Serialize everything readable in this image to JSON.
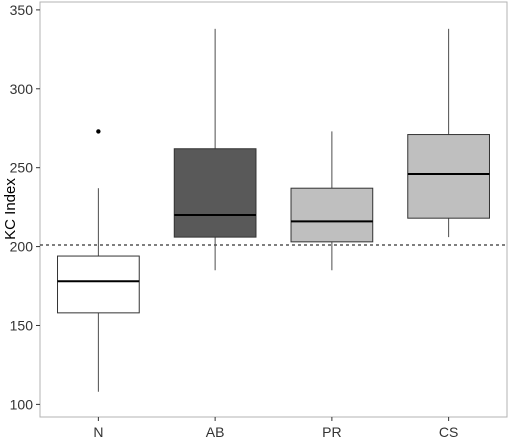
{
  "chart_data": {
    "type": "box",
    "title": "",
    "xlabel": "",
    "ylabel": "KC Index",
    "ylim": [
      92,
      355
    ],
    "yticks": [
      100,
      150,
      200,
      250,
      300,
      350
    ],
    "grid": false,
    "legend": "none",
    "reference_line": {
      "y": 201,
      "style": "dotted",
      "color": "#333333"
    },
    "categories": [
      "N",
      "AB",
      "PR",
      "CS"
    ],
    "boxes": [
      {
        "category": "N",
        "whisker_low": 108,
        "q1": 158,
        "median": 178,
        "q3": 194,
        "whisker_high": 237,
        "outliers": [
          273
        ],
        "fill": "#ffffff"
      },
      {
        "category": "AB",
        "whisker_low": 185,
        "q1": 206,
        "median": 220,
        "q3": 262,
        "whisker_high": 338,
        "outliers": [],
        "fill": "#595959"
      },
      {
        "category": "PR",
        "whisker_low": 185,
        "q1": 203,
        "median": 216,
        "q3": 237,
        "whisker_high": 273,
        "outliers": [],
        "fill": "#bfbfbf"
      },
      {
        "category": "CS",
        "whisker_low": 206,
        "q1": 218,
        "median": 246,
        "q3": 271,
        "whisker_high": 338,
        "outliers": [],
        "fill": "#bfbfbf"
      }
    ]
  }
}
